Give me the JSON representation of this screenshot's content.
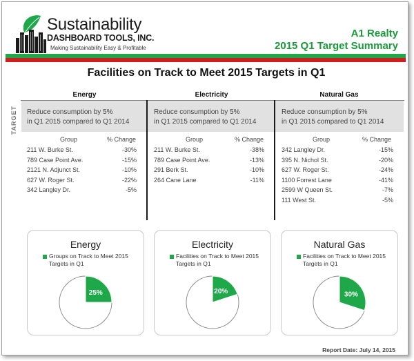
{
  "brand": {
    "name": "Sustainability",
    "subname": "DASHBOARD TOOLS, INC.",
    "tagline": "Making Sustainability Easy & Profitable"
  },
  "header": {
    "client": "A1 Realty",
    "report_title": "2015 Q1 Target Summary"
  },
  "colors": {
    "green": "#1fa84a",
    "red": "#cc1f1f"
  },
  "main_title": "Facilities on Track to Meet 2015 Targets in Q1",
  "target_label": "TARGET",
  "table_headers": {
    "group": "Group",
    "change": "% Change"
  },
  "columns": [
    {
      "name": "Energy",
      "target_line1": "Reduce consumption by 5%",
      "target_line2": "in Q1 2015 compared to Q1 2014",
      "rows": [
        {
          "group": "211 W. Burke St.",
          "change": "-30%"
        },
        {
          "group": "789 Case Point Ave.",
          "change": "-15%"
        },
        {
          "group": "2121 N. Adjunct St.",
          "change": "-10%"
        },
        {
          "group": "627 W. Roger St.",
          "change": "-22%"
        },
        {
          "group": "342 Langley Dr.",
          "change": "-5%"
        }
      ]
    },
    {
      "name": "Electricity",
      "target_line1": "Reduce consumption by 5%",
      "target_line2": "in Q1 2015 compared to Q1 2014",
      "rows": [
        {
          "group": "211 W. Burke St.",
          "change": "-38%"
        },
        {
          "group": "789 Case Point Ave.",
          "change": "-13%"
        },
        {
          "group": "291 Berk St.",
          "change": "-10%"
        },
        {
          "group": "264 Cane Lane",
          "change": "-11%"
        }
      ]
    },
    {
      "name": "Natural Gas",
      "target_line1": "Reduce consumption by 5%",
      "target_line2": "in Q1 2015 compared to Q1 2014",
      "rows": [
        {
          "group": "342 Langley Dr.",
          "change": "-15%"
        },
        {
          "group": "395 N. Nichol St.",
          "change": "-20%"
        },
        {
          "group": "627 W. Roger St.",
          "change": "-24%"
        },
        {
          "group": "1100 Forrest Lane",
          "change": "-41%"
        },
        {
          "group": "2599 W Queen St.",
          "change": "-7%"
        },
        {
          "group": "111 West St.",
          "change": "-5%"
        }
      ]
    }
  ],
  "chart_data": [
    {
      "type": "pie",
      "title": "Energy",
      "legend": [
        "Groups on Track to Meet 2015 Targets in Q1"
      ],
      "values": [
        25,
        75
      ],
      "labels": [
        "25%",
        ""
      ]
    },
    {
      "type": "pie",
      "title": "Electricity",
      "legend": [
        "Facilities on Track to Meet 2015 Targets in Q1"
      ],
      "values": [
        20,
        80
      ],
      "labels": [
        "20%",
        ""
      ]
    },
    {
      "type": "pie",
      "title": "Natural Gas",
      "legend": [
        "Facilities on Track to Meet 2015 Targets in Q1"
      ],
      "values": [
        30,
        70
      ],
      "labels": [
        "30%",
        ""
      ]
    }
  ],
  "report_date": "Report Date: July 14, 2015"
}
